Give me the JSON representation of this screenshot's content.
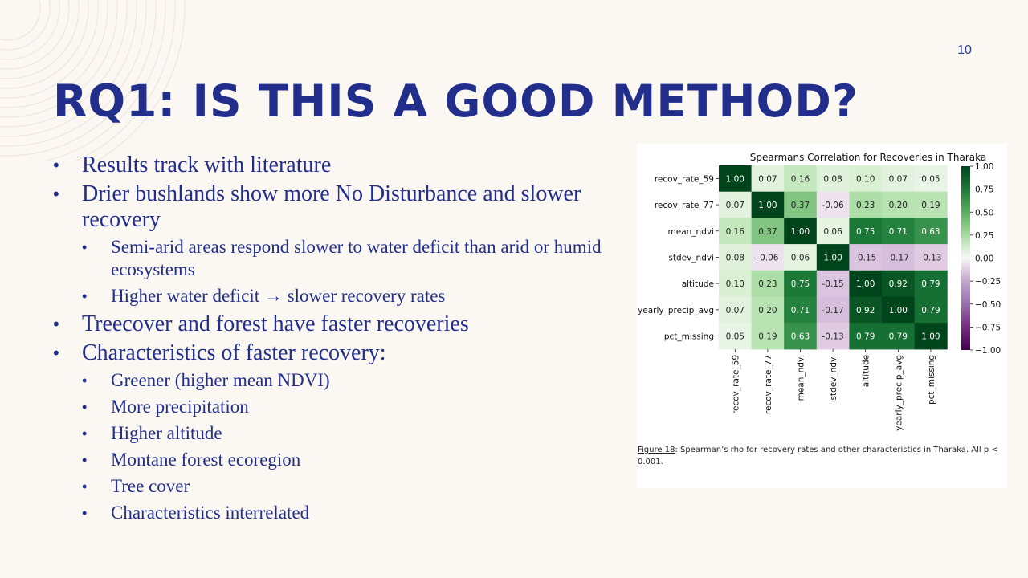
{
  "slide_number": "10",
  "title": "RQ1: IS THIS A GOOD METHOD?",
  "bullets": [
    {
      "level": 1,
      "text": "Results track with literature"
    },
    {
      "level": 1,
      "text": "Drier bushlands show more No Disturbance and slower recovery"
    },
    {
      "level": 2,
      "text": "Semi-arid areas respond slower to water deficit than arid or humid ecosystems"
    },
    {
      "level": 2,
      "text": "Higher water deficit → slower recovery rates"
    },
    {
      "level": 1,
      "text": "Treecover and forest have faster recoveries"
    },
    {
      "level": 1,
      "text": "Characteristics of faster recovery:"
    },
    {
      "level": 2,
      "text": "Greener (higher mean NDVI)"
    },
    {
      "level": 2,
      "text": "More precipitation"
    },
    {
      "level": 2,
      "text": "Higher altitude"
    },
    {
      "level": 2,
      "text": "Montane forest ecoregion"
    },
    {
      "level": 2,
      "text": "Tree cover"
    },
    {
      "level": 2,
      "text": "Characteristics interrelated"
    }
  ],
  "caption": {
    "figure_label": "Figure 18",
    "text": ": Spearman’s rho for recovery rates and other characteristics in Tharaka. All p < 0.001."
  },
  "colors": {
    "title": "#222e8c",
    "background": "#fbf8f3",
    "positive": "#00441b",
    "negative": "#40004b"
  },
  "chart_data": {
    "type": "heatmap",
    "title": "Spearmans Correlation for Recoveries in Tharaka",
    "labels": [
      "recov_rate_59",
      "recov_rate_77",
      "mean_ndvi",
      "stdev_ndvi",
      "altitude",
      "yearly_precip_avg",
      "pct_missing"
    ],
    "values": [
      [
        1.0,
        0.07,
        0.16,
        0.08,
        0.1,
        0.07,
        0.05
      ],
      [
        0.07,
        1.0,
        0.37,
        -0.06,
        0.23,
        0.2,
        0.19
      ],
      [
        0.16,
        0.37,
        1.0,
        0.06,
        0.75,
        0.71,
        0.63
      ],
      [
        0.08,
        -0.06,
        0.06,
        1.0,
        -0.15,
        -0.17,
        -0.13
      ],
      [
        0.1,
        0.23,
        0.75,
        -0.15,
        1.0,
        0.92,
        0.79
      ],
      [
        0.07,
        0.2,
        0.71,
        -0.17,
        0.92,
        1.0,
        0.79
      ],
      [
        0.05,
        0.19,
        0.63,
        -0.13,
        0.79,
        0.79,
        1.0
      ]
    ],
    "colormap": "PRGn",
    "vmin": -1.0,
    "vmax": 1.0,
    "colorbar_ticks": [
      "1.00",
      "0.75",
      "0.50",
      "0.25",
      "0.00",
      "−0.25",
      "−0.50",
      "−0.75",
      "−1.00"
    ]
  }
}
